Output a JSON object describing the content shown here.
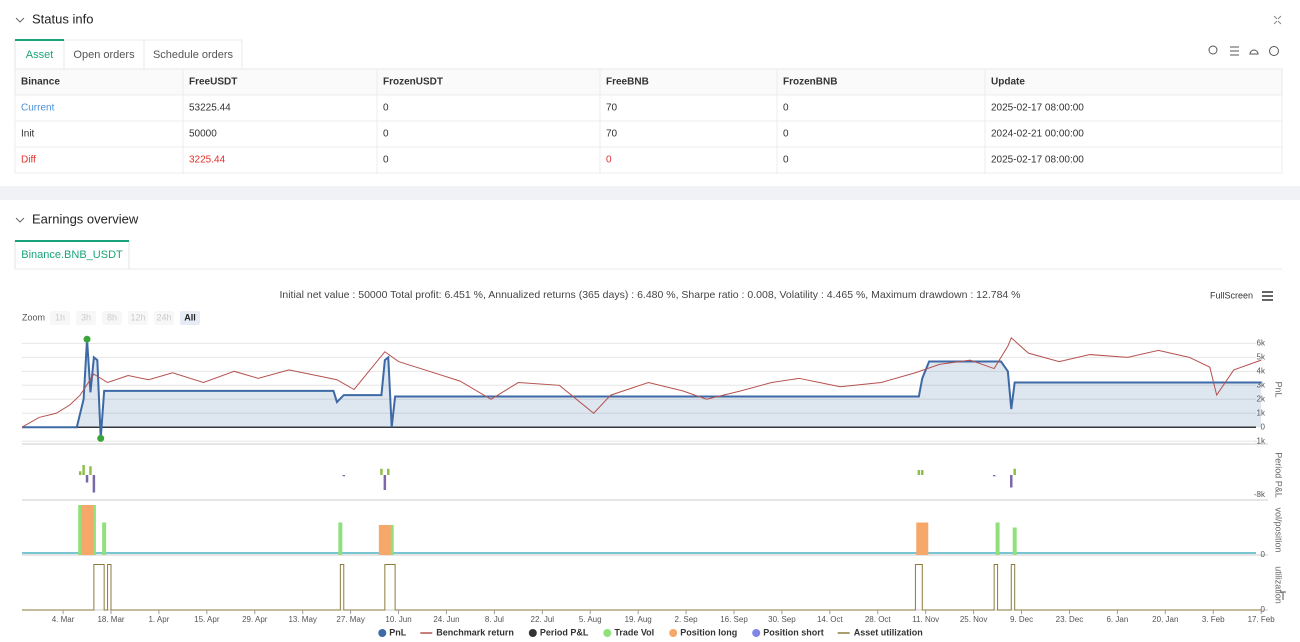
{
  "status": {
    "title": "Status info",
    "tabs": [
      "Asset",
      "Open orders",
      "Schedule orders"
    ],
    "table": {
      "columns": [
        "Binance",
        "FreeUSDT",
        "FrozenUSDT",
        "FreeBNB",
        "FrozenBNB",
        "Update"
      ],
      "rows": [
        [
          "Current",
          "53225.44",
          "0",
          "70",
          "0",
          "2025-02-17 08:00:00"
        ],
        [
          "Init",
          "50000",
          "0",
          "70",
          "0",
          "2024-02-21 00:00:00"
        ],
        [
          "Diff",
          "3225.44",
          "0",
          "0",
          "0",
          "2025-02-17 08:00:00"
        ]
      ]
    }
  },
  "earnings": {
    "title": "Earnings overview",
    "tabs": [
      "Binance.BNB_USDT"
    ],
    "summary": "Initial net value : 50000 Total profit: 6.451 %, Annualized returns (365 days) : 6.480 %, Sharpe ratio : 0.008, Volatility : 4.465 %, Maximum drawdown : 12.784 %",
    "fullscreen": "FullScreen",
    "zoom_label": "Zoom",
    "zoom_buttons": [
      "1h",
      "3h",
      "8h",
      "12h",
      "24h",
      "All"
    ]
  },
  "chart_data": [
    {
      "type": "line",
      "y_label": "PnL",
      "grid": true,
      "ylim": [
        -1200,
        6600
      ],
      "yticks": [
        {
          "value": -1000,
          "label": "-1k"
        },
        0,
        {
          "value": 1000,
          "label": "1k"
        },
        {
          "value": 2000,
          "label": "2k"
        },
        {
          "value": 3000,
          "label": "3k"
        },
        {
          "value": 4000,
          "label": "4k"
        },
        {
          "value": 5000,
          "label": "5k"
        },
        {
          "value": 6000,
          "label": "6k"
        }
      ],
      "extreme_marker_color": "#3aa53a",
      "series": [
        {
          "name": "PnL",
          "color": "#3d6aa6",
          "fill": "rgba(61,106,166,0.17)",
          "legend_symbol": "circle",
          "x": [
            "2024-02-21",
            "2024-03-08",
            "2024-03-10",
            "2024-03-11",
            "2024-03-12",
            "2024-03-13",
            "2024-03-14",
            "2024-03-15",
            "2024-03-16",
            "2024-05-22",
            "2024-05-23",
            "2024-05-25",
            "2024-06-05",
            "2024-06-06",
            "2024-06-07",
            "2024-06-08",
            "2024-06-09",
            "2024-11-09",
            "2024-11-10",
            "2024-11-12",
            "2024-12-03",
            "2024-12-05",
            "2024-12-06",
            "2024-12-07",
            "2025-02-17"
          ],
          "values": [
            0,
            0,
            2000,
            6300,
            2500,
            5000,
            4800,
            -800,
            2600,
            2600,
            1800,
            2300,
            2300,
            4800,
            5000,
            0,
            2200,
            2200,
            3500,
            4700,
            4700,
            4000,
            1300,
            3200,
            3200
          ]
        },
        {
          "name": "Benchmark return",
          "color": "#b5524f",
          "legend_symbol": "line",
          "x": [
            "2024-02-21",
            "2024-02-26",
            "2024-03-02",
            "2024-03-06",
            "2024-03-09",
            "2024-03-13",
            "2024-03-17",
            "2024-03-23",
            "2024-03-29",
            "2024-04-05",
            "2024-04-14",
            "2024-04-23",
            "2024-04-30",
            "2024-05-09",
            "2024-05-17",
            "2024-05-23",
            "2024-05-28",
            "2024-06-03",
            "2024-06-06",
            "2024-06-10",
            "2024-06-19",
            "2024-06-28",
            "2024-07-07",
            "2024-07-15",
            "2024-07-27",
            "2024-08-06",
            "2024-08-11",
            "2024-08-22",
            "2024-09-01",
            "2024-09-08",
            "2024-09-18",
            "2024-09-27",
            "2024-10-05",
            "2024-10-17",
            "2024-10-29",
            "2024-11-08",
            "2024-11-15",
            "2024-11-24",
            "2024-12-01",
            "2024-12-05",
            "2024-12-06",
            "2024-12-11",
            "2024-12-20",
            "2024-12-29",
            "2025-01-09",
            "2025-01-18",
            "2025-01-27",
            "2025-02-02",
            "2025-02-04",
            "2025-02-09",
            "2025-02-17"
          ],
          "values": [
            0,
            700,
            1000,
            1600,
            2300,
            3800,
            3200,
            3700,
            3400,
            3900,
            3200,
            4000,
            3500,
            4100,
            3700,
            3400,
            2700,
            4500,
            5400,
            4700,
            4000,
            3300,
            2000,
            3200,
            3000,
            1000,
            2300,
            3200,
            2600,
            2000,
            2600,
            3200,
            3500,
            2900,
            3200,
            3900,
            4500,
            4800,
            4200,
            5800,
            6400,
            5300,
            4700,
            5200,
            5000,
            5500,
            5000,
            4300,
            2300,
            4100,
            4800
          ]
        }
      ]
    },
    {
      "type": "bar",
      "y_label": "Period P&L",
      "ylim": [
        -10000,
        10000
      ],
      "yticks": [
        {
          "value": -8000,
          "label": "-8k"
        }
      ],
      "series": [
        {
          "name": "Period P&L",
          "color": "#333333",
          "up_color": "#8fbf4a",
          "down_color": "#7a68a8",
          "legend_symbol": "circle",
          "x": [
            "2024-03-09",
            "2024-03-10",
            "2024-03-11",
            "2024-03-12",
            "2024-03-13",
            "2024-05-25",
            "2024-06-05",
            "2024-06-06",
            "2024-06-07",
            "2024-11-09",
            "2024-11-10",
            "2024-12-01",
            "2024-12-06",
            "2024-12-07"
          ],
          "values": [
            1500,
            4000,
            -3000,
            3500,
            -7000,
            -500,
            2500,
            -6000,
            2500,
            2000,
            2000,
            -500,
            -5000,
            2500
          ]
        }
      ]
    },
    {
      "type": "bar",
      "y_label": "vol/position",
      "ylim": [
        0,
        100
      ],
      "yticks": [
        0
      ],
      "baseline_color": "#4db3c4",
      "series": [
        {
          "name": "Trade Vol",
          "color": "#90e07c",
          "legend_symbol": "circle",
          "x": [
            "2024-03-09",
            "2024-03-13",
            "2024-03-16",
            "2024-05-24",
            "2024-06-05",
            "2024-06-08",
            "2024-11-10",
            "2024-12-02",
            "2024-12-07"
          ],
          "values": [
            100,
            100,
            65,
            65,
            60,
            60,
            65,
            65,
            55
          ]
        },
        {
          "name": "Position long",
          "color": "#f5a86a",
          "legend_symbol": "circle",
          "x": [
            "2024-03-11",
            "2024-06-06",
            "2024-11-10"
          ],
          "values": [
            100,
            60,
            65
          ]
        },
        {
          "name": "Position short",
          "color": "#8085e9",
          "legend_symbol": "circle",
          "x": [],
          "values": []
        }
      ]
    },
    {
      "type": "step",
      "y_label": "utilization",
      "ylim": [
        0,
        1.1
      ],
      "yticks": [
        0
      ],
      "xlim": [
        "2024-02-21",
        "2025-02-19"
      ],
      "xticks": [
        {
          "value": "2024-03-04",
          "label": "4. Mar"
        },
        {
          "value": "2024-03-18",
          "label": "18. Mar"
        },
        {
          "value": "2024-04-01",
          "label": "1. Apr"
        },
        {
          "value": "2024-04-15",
          "label": "15. Apr"
        },
        {
          "value": "2024-04-29",
          "label": "29. Apr"
        },
        {
          "value": "2024-05-13",
          "label": "13. May"
        },
        {
          "value": "2024-05-27",
          "label": "27. May"
        },
        {
          "value": "2024-06-10",
          "label": "10. Jun"
        },
        {
          "value": "2024-06-24",
          "label": "24. Jun"
        },
        {
          "value": "2024-07-08",
          "label": "8. Jul"
        },
        {
          "value": "2024-07-22",
          "label": "22. Jul"
        },
        {
          "value": "2024-08-05",
          "label": "5. Aug"
        },
        {
          "value": "2024-08-19",
          "label": "19. Aug"
        },
        {
          "value": "2024-09-02",
          "label": "2. Sep"
        },
        {
          "value": "2024-09-16",
          "label": "16. Sep"
        },
        {
          "value": "2024-09-30",
          "label": "30. Sep"
        },
        {
          "value": "2024-10-14",
          "label": "14. Oct"
        },
        {
          "value": "2024-10-28",
          "label": "28. Oct"
        },
        {
          "value": "2024-11-11",
          "label": "11. Nov"
        },
        {
          "value": "2024-11-25",
          "label": "25. Nov"
        },
        {
          "value": "2024-12-09",
          "label": "9. Dec"
        },
        {
          "value": "2024-12-23",
          "label": "23. Dec"
        },
        {
          "value": "2025-01-06",
          "label": "6. Jan"
        },
        {
          "value": "2025-01-20",
          "label": "20. Jan"
        },
        {
          "value": "2025-02-03",
          "label": "3. Feb"
        },
        {
          "value": "2025-02-17",
          "label": "17. Feb"
        }
      ],
      "series": [
        {
          "name": "Asset utilization",
          "color": "#8d7a3b",
          "legend_symbol": "line",
          "x": [
            "2024-02-21",
            "2024-03-13",
            "2024-03-16",
            "2024-03-17",
            "2024-03-18",
            "2024-05-24",
            "2024-05-25",
            "2024-06-06",
            "2024-06-09",
            "2024-11-08",
            "2024-11-10",
            "2024-12-01",
            "2024-12-02",
            "2024-12-06",
            "2024-12-07",
            "2025-02-17"
          ],
          "values": [
            0,
            1,
            0,
            1,
            0,
            1,
            0,
            1,
            0,
            1,
            0,
            1,
            0,
            1,
            0,
            0
          ]
        }
      ]
    }
  ]
}
